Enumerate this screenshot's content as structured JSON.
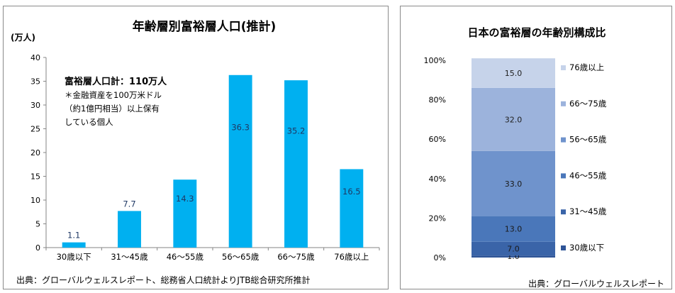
{
  "chart_data": [
    {
      "type": "bar",
      "title": "年齢層別富裕層人口(推計)",
      "unit_label": "(万人)",
      "categories": [
        "30歳以下",
        "31～45歳",
        "46～55歳",
        "56～65歳",
        "66～75歳",
        "76歳以上"
      ],
      "values": [
        1.1,
        7.7,
        14.3,
        36.3,
        35.2,
        16.5
      ],
      "value_labels": [
        "1.1",
        "7.7",
        "14.3",
        "36.3",
        "35.2",
        "16.5"
      ],
      "ylim": [
        0,
        40
      ],
      "yticks": [
        "0",
        "5",
        "10",
        "15",
        "20",
        "25",
        "30",
        "35",
        "40"
      ],
      "bar_color": "#00b0f0",
      "label_color": "#1f3864",
      "grid": false,
      "annotation": {
        "heading": "富裕層人口計：110万人",
        "lines": [
          "＊金融資産を100万米ドル",
          "（約1億円相当）以上保有",
          "している個人"
        ]
      },
      "source": "出典：グローバルウェルスレポート、総務省人口統計よりJTB総合研究所推計"
    },
    {
      "type": "stacked_bar",
      "title": "日本の富裕層の年齢別構成比",
      "ylim": [
        0,
        100
      ],
      "yticks": [
        "0%",
        "20%",
        "40%",
        "60%",
        "80%",
        "100%"
      ],
      "segments": [
        {
          "name": "30歳以下",
          "value": 1.0,
          "label": "1.0",
          "color": "#2f5597"
        },
        {
          "name": "31～45歳",
          "value": 7.0,
          "label": "7.0",
          "color": "#3a64a8"
        },
        {
          "name": "46～55歳",
          "value": 13.0,
          "label": "13.0",
          "color": "#4a77ba"
        },
        {
          "name": "56～65歳",
          "value": 33.0,
          "label": "33.0",
          "color": "#6f93cc"
        },
        {
          "name": "66～75歳",
          "value": 32.0,
          "label": "32.0",
          "color": "#9cb3dc"
        },
        {
          "name": "76歳以上",
          "value": 15.0,
          "label": "15.0",
          "color": "#c6d3ea"
        }
      ],
      "legend_order": [
        "76歳以上",
        "66～75歳",
        "56～65歳",
        "46～55歳",
        "31～45歳",
        "30歳以下"
      ],
      "legend_position": "right",
      "source": "出典：グローバルウェルスレポート"
    }
  ]
}
